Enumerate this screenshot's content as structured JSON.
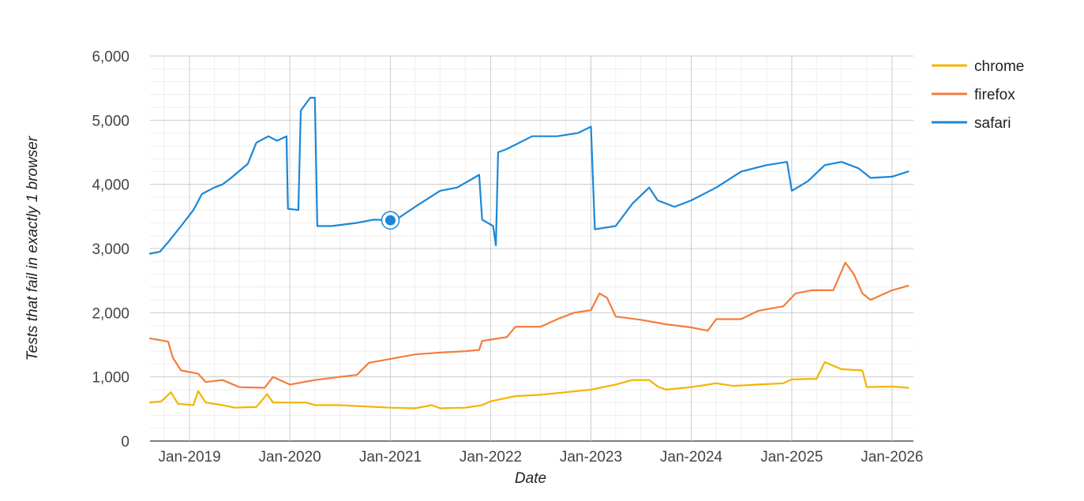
{
  "chart_data": {
    "type": "line",
    "title": "",
    "xlabel": "Date",
    "ylabel": "Tests that fail in exactly 1 browser",
    "xlim": [
      "2018-08-10",
      "2026-03-20"
    ],
    "ylim": [
      0,
      6000
    ],
    "x_ticks": [
      "Jan-2019",
      "Jan-2020",
      "Jan-2021",
      "Jan-2022",
      "Jan-2023",
      "Jan-2024",
      "Jan-2025",
      "Jan-2026"
    ],
    "x_tick_dates": [
      "2019-01-01",
      "2020-01-01",
      "2021-01-01",
      "2022-01-01",
      "2023-01-01",
      "2024-01-01",
      "2025-01-01",
      "2026-01-01"
    ],
    "y_ticks": [
      "0",
      "1,000",
      "2,000",
      "3,000",
      "4,000",
      "5,000",
      "6,000"
    ],
    "y_tick_values": [
      0,
      1000,
      2000,
      3000,
      4000,
      5000,
      6000
    ],
    "grid": true,
    "legend_position": "right",
    "highlighted_point": {
      "series": "safari",
      "x": "2021-01-01",
      "y": 3440
    },
    "series": [
      {
        "name": "chrome",
        "color": "#f4b400",
        "points": [
          [
            "2018-08-10",
            600
          ],
          [
            "2018-09-20",
            620
          ],
          [
            "2018-10-25",
            760
          ],
          [
            "2018-11-20",
            580
          ],
          [
            "2019-01-15",
            560
          ],
          [
            "2019-02-01",
            780
          ],
          [
            "2019-03-01",
            600
          ],
          [
            "2019-05-01",
            560
          ],
          [
            "2019-06-15",
            520
          ],
          [
            "2019-09-01",
            530
          ],
          [
            "2019-10-10",
            730
          ],
          [
            "2019-11-01",
            600
          ],
          [
            "2020-03-01",
            600
          ],
          [
            "2020-04-01",
            560
          ],
          [
            "2020-07-01",
            560
          ],
          [
            "2020-10-01",
            540
          ],
          [
            "2021-01-01",
            520
          ],
          [
            "2021-04-01",
            510
          ],
          [
            "2021-06-01",
            560
          ],
          [
            "2021-07-01",
            510
          ],
          [
            "2021-10-01",
            520
          ],
          [
            "2021-12-01",
            560
          ],
          [
            "2022-01-01",
            620
          ],
          [
            "2022-04-01",
            700
          ],
          [
            "2022-07-01",
            720
          ],
          [
            "2022-10-01",
            760
          ],
          [
            "2023-01-01",
            800
          ],
          [
            "2023-04-01",
            880
          ],
          [
            "2023-06-01",
            950
          ],
          [
            "2023-08-01",
            950
          ],
          [
            "2023-09-01",
            850
          ],
          [
            "2023-10-01",
            800
          ],
          [
            "2024-01-01",
            840
          ],
          [
            "2024-04-01",
            900
          ],
          [
            "2024-06-01",
            860
          ],
          [
            "2024-09-01",
            880
          ],
          [
            "2024-12-01",
            900
          ],
          [
            "2025-01-01",
            960
          ],
          [
            "2025-04-01",
            970
          ],
          [
            "2025-05-01",
            1230
          ],
          [
            "2025-07-01",
            1120
          ],
          [
            "2025-09-15",
            1100
          ],
          [
            "2025-10-01",
            840
          ],
          [
            "2026-01-01",
            850
          ],
          [
            "2026-03-01",
            830
          ]
        ]
      },
      {
        "name": "firefox",
        "color": "#f47c3c",
        "points": [
          [
            "2018-08-10",
            1600
          ],
          [
            "2018-10-15",
            1550
          ],
          [
            "2018-11-01",
            1300
          ],
          [
            "2018-12-01",
            1100
          ],
          [
            "2019-02-01",
            1050
          ],
          [
            "2019-03-01",
            920
          ],
          [
            "2019-05-01",
            950
          ],
          [
            "2019-07-01",
            840
          ],
          [
            "2019-10-01",
            830
          ],
          [
            "2019-11-01",
            1000
          ],
          [
            "2020-01-01",
            880
          ],
          [
            "2020-04-01",
            950
          ],
          [
            "2020-07-01",
            1000
          ],
          [
            "2020-09-01",
            1030
          ],
          [
            "2020-10-15",
            1220
          ],
          [
            "2021-01-01",
            1280
          ],
          [
            "2021-04-01",
            1350
          ],
          [
            "2021-07-01",
            1380
          ],
          [
            "2021-10-01",
            1400
          ],
          [
            "2021-11-20",
            1420
          ],
          [
            "2021-12-01",
            1560
          ],
          [
            "2022-01-01",
            1580
          ],
          [
            "2022-03-01",
            1620
          ],
          [
            "2022-04-01",
            1780
          ],
          [
            "2022-06-01",
            1780
          ],
          [
            "2022-07-01",
            1780
          ],
          [
            "2022-09-01",
            1900
          ],
          [
            "2022-11-01",
            2000
          ],
          [
            "2023-01-01",
            2040
          ],
          [
            "2023-02-01",
            2300
          ],
          [
            "2023-03-01",
            2230
          ],
          [
            "2023-04-01",
            1940
          ],
          [
            "2023-07-01",
            1890
          ],
          [
            "2023-10-01",
            1820
          ],
          [
            "2024-01-01",
            1770
          ],
          [
            "2024-03-01",
            1720
          ],
          [
            "2024-04-01",
            1900
          ],
          [
            "2024-07-01",
            1900
          ],
          [
            "2024-09-01",
            2030
          ],
          [
            "2024-12-01",
            2100
          ],
          [
            "2025-01-15",
            2300
          ],
          [
            "2025-03-15",
            2350
          ],
          [
            "2025-06-01",
            2350
          ],
          [
            "2025-07-15",
            2780
          ],
          [
            "2025-08-15",
            2600
          ],
          [
            "2025-09-15",
            2300
          ],
          [
            "2025-10-15",
            2200
          ],
          [
            "2026-01-01",
            2350
          ],
          [
            "2026-03-01",
            2420
          ]
        ]
      },
      {
        "name": "safari",
        "color": "#1b87d8",
        "points": [
          [
            "2018-08-10",
            2920
          ],
          [
            "2018-09-15",
            2950
          ],
          [
            "2018-10-15",
            3100
          ],
          [
            "2018-12-01",
            3350
          ],
          [
            "2019-01-15",
            3600
          ],
          [
            "2019-02-15",
            3850
          ],
          [
            "2019-04-01",
            3950
          ],
          [
            "2019-05-01",
            4000
          ],
          [
            "2019-06-01",
            4100
          ],
          [
            "2019-08-01",
            4320
          ],
          [
            "2019-09-01",
            4650
          ],
          [
            "2019-10-15",
            4750
          ],
          [
            "2019-11-15",
            4680
          ],
          [
            "2019-12-20",
            4750
          ],
          [
            "2019-12-25",
            3620
          ],
          [
            "2020-02-01",
            3600
          ],
          [
            "2020-02-10",
            5150
          ],
          [
            "2020-03-15",
            5350
          ],
          [
            "2020-04-01",
            5350
          ],
          [
            "2020-04-10",
            3350
          ],
          [
            "2020-06-01",
            3350
          ],
          [
            "2020-09-01",
            3400
          ],
          [
            "2020-11-01",
            3450
          ],
          [
            "2021-01-01",
            3440
          ],
          [
            "2021-02-01",
            3480
          ],
          [
            "2021-04-01",
            3650
          ],
          [
            "2021-07-01",
            3900
          ],
          [
            "2021-09-01",
            3950
          ],
          [
            "2021-11-01",
            4100
          ],
          [
            "2021-11-20",
            4150
          ],
          [
            "2021-12-01",
            3450
          ],
          [
            "2022-01-10",
            3350
          ],
          [
            "2022-01-20",
            3050
          ],
          [
            "2022-01-28",
            4500
          ],
          [
            "2022-03-01",
            4550
          ],
          [
            "2022-06-01",
            4750
          ],
          [
            "2022-09-01",
            4750
          ],
          [
            "2022-11-15",
            4800
          ],
          [
            "2023-01-01",
            4900
          ],
          [
            "2023-01-15",
            3300
          ],
          [
            "2023-04-01",
            3350
          ],
          [
            "2023-06-01",
            3700
          ],
          [
            "2023-08-01",
            3950
          ],
          [
            "2023-09-01",
            3750
          ],
          [
            "2023-11-01",
            3650
          ],
          [
            "2024-01-01",
            3750
          ],
          [
            "2024-04-01",
            3950
          ],
          [
            "2024-07-01",
            4200
          ],
          [
            "2024-10-01",
            4300
          ],
          [
            "2024-12-15",
            4350
          ],
          [
            "2025-01-01",
            3900
          ],
          [
            "2025-03-01",
            4050
          ],
          [
            "2025-05-01",
            4300
          ],
          [
            "2025-07-01",
            4350
          ],
          [
            "2025-09-01",
            4250
          ],
          [
            "2025-10-15",
            4100
          ],
          [
            "2026-01-01",
            4120
          ],
          [
            "2026-03-01",
            4200
          ]
        ]
      }
    ]
  }
}
